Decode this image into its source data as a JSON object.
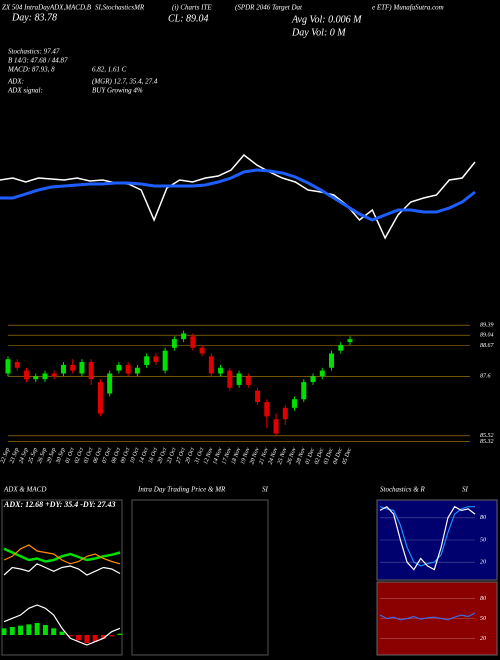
{
  "header": {
    "lines": [
      "ZX 504 IntraDayADX,MACD,B",
      "SI,StochasticsMR",
      "(i) Charts ITE",
      "(SPDR 2046 Target Dat",
      "e ETF) MunafaSutra.com",
      "Day: 83.78",
      "CL: 89.04",
      "Avg Vol: 0.006 M",
      "Day Vol: 0 M",
      "Stochastics: 97.47",
      "B 14/3: 47.68 / 44.87",
      "MACD: 87.93, 8",
      "6.82, 1.61 C",
      "ADX:",
      "(MGR) 12.7, 35.4, 27.4",
      "ADX signal:",
      "BUY Growing 4%"
    ]
  },
  "chart_data": [
    {
      "type": "line",
      "ylim": [
        0,
        100
      ],
      "series": [
        {
          "color": "#ffffff",
          "values": [
            70,
            72,
            68,
            72,
            71,
            70,
            72,
            69,
            70,
            67,
            66,
            60,
            30,
            62,
            70,
            68,
            72,
            74,
            80,
            95,
            85,
            78,
            72,
            68,
            60,
            58,
            55,
            45,
            30,
            40,
            12,
            35,
            48,
            52,
            55,
            70,
            72,
            88
          ]
        },
        {
          "color": "#1e5eff",
          "values": [
            52,
            52,
            56,
            60,
            63,
            64,
            65,
            66,
            66,
            67,
            67,
            66,
            64,
            64,
            64,
            64,
            65,
            68,
            72,
            78,
            80,
            79,
            77,
            73,
            67,
            60,
            52,
            44,
            36,
            30,
            35,
            40,
            40,
            38,
            38,
            42,
            48,
            58
          ]
        }
      ]
    },
    {
      "type": "candlestick",
      "ylim": [
        85.2,
        89.5
      ],
      "yticks": [
        89.39,
        89.04,
        88.67,
        87.6,
        85.52,
        85.32
      ],
      "up_color": "#00e000",
      "down_color": "#e00000",
      "categories": [
        "22 Sep",
        "23 Sep",
        "24 Sep",
        "25 Sep",
        "26 Sep",
        "29 Sep",
        "30 Sep",
        "01 Oct",
        "02 Oct",
        "03 Oct",
        "06 Oct",
        "07 Oct",
        "08 Oct",
        "09 Oct",
        "10 Oct",
        "14 Oct",
        "16 Oct",
        "20 Oct",
        "23 Oct",
        "27 Oct",
        "29 Oct",
        "31 Oct",
        "12 Nov",
        "14 Nov",
        "17 Nov",
        "18 Nov",
        "19 Nov",
        "20 Nov",
        "21 Nov",
        "24 Nov",
        "25 Nov",
        "26 Nov",
        "28 Nov",
        "01 Dec",
        "02 Dec",
        "03 Dec",
        "04 Dec",
        "05 Dec"
      ],
      "open": [
        87.7,
        88.1,
        87.8,
        87.5,
        87.5,
        87.7,
        87.7,
        88.0,
        87.7,
        88.1,
        87.4,
        87.0,
        87.8,
        88.0,
        87.7,
        88.0,
        88.3,
        87.8,
        88.6,
        88.9,
        89.0,
        88.6,
        88.3,
        87.7,
        87.8,
        87.3,
        87.6,
        87.1,
        86.7,
        86.1,
        86.5,
        86.5,
        86.8,
        87.4,
        87.6,
        87.9,
        88.5,
        88.8
      ],
      "high": [
        88.3,
        88.2,
        87.9,
        87.7,
        87.8,
        87.8,
        88.1,
        88.2,
        88.2,
        88.2,
        87.5,
        87.8,
        88.1,
        88.1,
        88.0,
        88.4,
        88.4,
        88.6,
        89.0,
        89.2,
        89.1,
        88.7,
        88.4,
        88.0,
        87.9,
        87.8,
        87.7,
        87.2,
        86.8,
        86.3,
        86.6,
        86.9,
        87.5,
        87.7,
        87.9,
        88.5,
        88.8,
        89.0
      ],
      "low": [
        87.6,
        87.8,
        87.4,
        87.4,
        87.4,
        87.5,
        87.6,
        87.7,
        87.6,
        87.3,
        86.2,
        86.9,
        87.7,
        87.6,
        87.6,
        87.9,
        88.0,
        87.7,
        88.5,
        88.8,
        88.5,
        88.3,
        87.6,
        87.6,
        87.1,
        87.2,
        87.2,
        86.6,
        85.8,
        85.5,
        85.9,
        86.4,
        86.7,
        87.3,
        87.5,
        87.8,
        88.4,
        88.7
      ],
      "close": [
        88.2,
        87.9,
        87.5,
        87.6,
        87.7,
        87.6,
        88.0,
        87.8,
        88.1,
        87.5,
        86.3,
        87.7,
        88.0,
        87.7,
        87.9,
        88.3,
        88.1,
        88.5,
        88.9,
        89.1,
        88.6,
        88.4,
        87.7,
        87.9,
        87.2,
        87.7,
        87.3,
        86.7,
        86.2,
        85.6,
        86.1,
        86.8,
        87.4,
        87.6,
        87.8,
        88.4,
        88.7,
        88.9
      ]
    },
    {
      "type": "line",
      "title": "ADX & MACD",
      "subtitle": "ADX: 12.68 +DY: 35.4 -DY: 27.43",
      "ylim": [
        0,
        100
      ],
      "series": [
        {
          "color": "#00e000",
          "values": [
            55,
            50,
            45,
            40,
            42,
            38,
            40,
            45,
            48,
            44,
            40,
            42,
            45,
            47,
            50
          ]
        },
        {
          "color": "#ff8c00",
          "values": [
            40,
            45,
            55,
            60,
            52,
            50,
            48,
            40,
            35,
            38,
            45,
            48,
            42,
            38,
            35
          ]
        },
        {
          "color": "#ffffff",
          "values": [
            20,
            30,
            28,
            25,
            35,
            30,
            25,
            30,
            32,
            28,
            20,
            25,
            30,
            28,
            22
          ]
        }
      ]
    },
    {
      "type": "macd",
      "ylim": [
        -30,
        60
      ],
      "up_color": "#00e000",
      "down_color": "#e00000",
      "values": [
        10,
        12,
        14,
        16,
        18,
        15,
        10,
        5,
        -2,
        -8,
        -12,
        -10,
        -6,
        -2,
        2
      ],
      "series": [
        {
          "color": "#ffffff",
          "values": [
            20,
            25,
            30,
            40,
            45,
            40,
            30,
            10,
            -5,
            -10,
            -15,
            -10,
            -5,
            5,
            10
          ]
        }
      ]
    },
    {
      "type": "line",
      "title": "Intra Day Trading Price & MR",
      "subtitle": "SI",
      "series": []
    },
    {
      "type": "line",
      "title": "Stochastics & R",
      "subtitle": "SI",
      "ylim": [
        0,
        100
      ],
      "yticks": [
        20,
        50,
        80
      ],
      "series": [
        {
          "color": "#1e90ff",
          "values": [
            95,
            92,
            90,
            70,
            40,
            20,
            15,
            18,
            20,
            30,
            60,
            85,
            92,
            95,
            95
          ]
        },
        {
          "color": "#ffffff",
          "values": [
            90,
            95,
            85,
            50,
            20,
            10,
            25,
            15,
            10,
            40,
            80,
            95,
            90,
            92,
            85
          ]
        }
      ]
    },
    {
      "type": "line",
      "ylim": [
        0,
        100
      ],
      "yticks": [
        20,
        50,
        80
      ],
      "series": [
        {
          "color": "#4169e1",
          "values": [
            55,
            50,
            52,
            48,
            50,
            53,
            49,
            51,
            52,
            50,
            48,
            52,
            55,
            53,
            58
          ]
        }
      ]
    }
  ]
}
